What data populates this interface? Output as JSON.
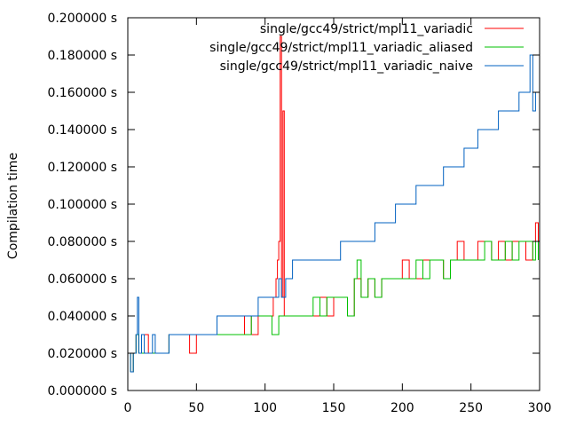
{
  "chart_data": {
    "type": "line",
    "title": "",
    "xlabel": "",
    "ylabel": "Compilation time",
    "xlim": [
      0,
      300
    ],
    "ylim": [
      0,
      0.2
    ],
    "grid": false,
    "legend_position": "top-right",
    "x_ticks": [
      "0",
      "50",
      "100",
      "150",
      "200",
      "250",
      "300"
    ],
    "y_ticks": [
      "0.000000 s",
      "0.020000 s",
      "0.040000 s",
      "0.060000 s",
      "0.080000 s",
      "0.100000 s",
      "0.120000 s",
      "0.140000 s",
      "0.160000 s",
      "0.180000 s",
      "0.200000 s"
    ],
    "x_tick_values": [
      0,
      50,
      100,
      150,
      200,
      250,
      300
    ],
    "y_tick_values": [
      0,
      0.02,
      0.04,
      0.06,
      0.08,
      0.1,
      0.12,
      0.14,
      0.16,
      0.18,
      0.2
    ],
    "series": [
      {
        "name": "single/gcc49/strict/mpl11_variadic",
        "color": "#ff0000",
        "x": [
          0,
          2,
          4,
          6,
          8,
          10,
          15,
          20,
          25,
          30,
          35,
          40,
          45,
          50,
          55,
          60,
          65,
          70,
          75,
          80,
          85,
          90,
          95,
          100,
          103,
          106,
          108,
          109,
          110,
          111,
          112,
          113,
          114,
          116,
          120,
          125,
          130,
          135,
          140,
          145,
          150,
          155,
          160,
          165,
          170,
          175,
          180,
          185,
          190,
          195,
          200,
          205,
          210,
          215,
          220,
          225,
          230,
          235,
          240,
          245,
          250,
          255,
          260,
          265,
          270,
          275,
          280,
          285,
          290,
          295,
          297,
          299
        ],
        "y": [
          0.02,
          0.01,
          0.02,
          0.03,
          0.02,
          0.03,
          0.02,
          0.02,
          0.02,
          0.03,
          0.03,
          0.03,
          0.02,
          0.03,
          0.03,
          0.03,
          0.03,
          0.03,
          0.03,
          0.03,
          0.04,
          0.03,
          0.04,
          0.04,
          0.04,
          0.05,
          0.06,
          0.07,
          0.08,
          0.19,
          0.05,
          0.15,
          0.04,
          0.04,
          0.04,
          0.04,
          0.04,
          0.04,
          0.05,
          0.04,
          0.05,
          0.05,
          0.04,
          0.06,
          0.05,
          0.06,
          0.05,
          0.06,
          0.06,
          0.06,
          0.07,
          0.06,
          0.06,
          0.07,
          0.07,
          0.07,
          0.06,
          0.07,
          0.08,
          0.07,
          0.07,
          0.08,
          0.08,
          0.07,
          0.08,
          0.07,
          0.08,
          0.08,
          0.07,
          0.08,
          0.09,
          0.08
        ]
      },
      {
        "name": "single/gcc49/strict/mpl11_variadic_aliased",
        "color": "#00c000",
        "x": [
          0,
          2,
          4,
          6,
          8,
          10,
          15,
          20,
          25,
          30,
          35,
          40,
          45,
          50,
          55,
          60,
          65,
          70,
          75,
          80,
          85,
          90,
          95,
          100,
          105,
          110,
          115,
          120,
          125,
          130,
          135,
          140,
          145,
          150,
          155,
          160,
          165,
          167,
          170,
          175,
          180,
          185,
          190,
          195,
          200,
          205,
          210,
          215,
          220,
          225,
          230,
          235,
          240,
          245,
          250,
          255,
          260,
          265,
          270,
          275,
          280,
          285,
          290,
          295,
          297,
          299
        ],
        "y": [
          0.02,
          0.01,
          0.02,
          0.03,
          0.02,
          0.02,
          0.02,
          0.02,
          0.02,
          0.03,
          0.03,
          0.03,
          0.03,
          0.03,
          0.03,
          0.03,
          0.03,
          0.03,
          0.03,
          0.03,
          0.03,
          0.04,
          0.04,
          0.04,
          0.03,
          0.04,
          0.04,
          0.04,
          0.04,
          0.04,
          0.05,
          0.04,
          0.05,
          0.05,
          0.05,
          0.04,
          0.06,
          0.07,
          0.05,
          0.06,
          0.05,
          0.06,
          0.06,
          0.06,
          0.06,
          0.06,
          0.07,
          0.06,
          0.07,
          0.07,
          0.06,
          0.07,
          0.07,
          0.07,
          0.07,
          0.07,
          0.08,
          0.07,
          0.07,
          0.08,
          0.07,
          0.08,
          0.08,
          0.07,
          0.08,
          0.07
        ]
      },
      {
        "name": "single/gcc49/strict/mpl11_variadic_naive",
        "color": "#0060c0",
        "x": [
          0,
          2,
          4,
          6,
          7,
          8,
          10,
          12,
          15,
          18,
          20,
          25,
          30,
          35,
          40,
          45,
          50,
          55,
          60,
          65,
          70,
          75,
          80,
          85,
          90,
          95,
          100,
          105,
          110,
          112,
          115,
          120,
          125,
          130,
          135,
          140,
          145,
          150,
          155,
          160,
          165,
          170,
          175,
          180,
          185,
          190,
          195,
          200,
          205,
          210,
          215,
          220,
          225,
          230,
          235,
          240,
          245,
          250,
          255,
          260,
          265,
          270,
          275,
          280,
          285,
          290,
          293,
          295,
          297,
          299
        ],
        "y": [
          0.02,
          0.01,
          0.02,
          0.03,
          0.05,
          0.02,
          0.03,
          0.02,
          0.02,
          0.03,
          0.02,
          0.02,
          0.03,
          0.03,
          0.03,
          0.03,
          0.03,
          0.03,
          0.03,
          0.04,
          0.04,
          0.04,
          0.04,
          0.04,
          0.04,
          0.05,
          0.05,
          0.05,
          0.06,
          0.05,
          0.06,
          0.07,
          0.07,
          0.07,
          0.07,
          0.07,
          0.07,
          0.07,
          0.08,
          0.08,
          0.08,
          0.08,
          0.08,
          0.09,
          0.09,
          0.09,
          0.1,
          0.1,
          0.1,
          0.11,
          0.11,
          0.11,
          0.11,
          0.12,
          0.12,
          0.12,
          0.13,
          0.13,
          0.14,
          0.14,
          0.14,
          0.15,
          0.15,
          0.15,
          0.16,
          0.16,
          0.18,
          0.15,
          0.16,
          0.16
        ]
      }
    ]
  }
}
